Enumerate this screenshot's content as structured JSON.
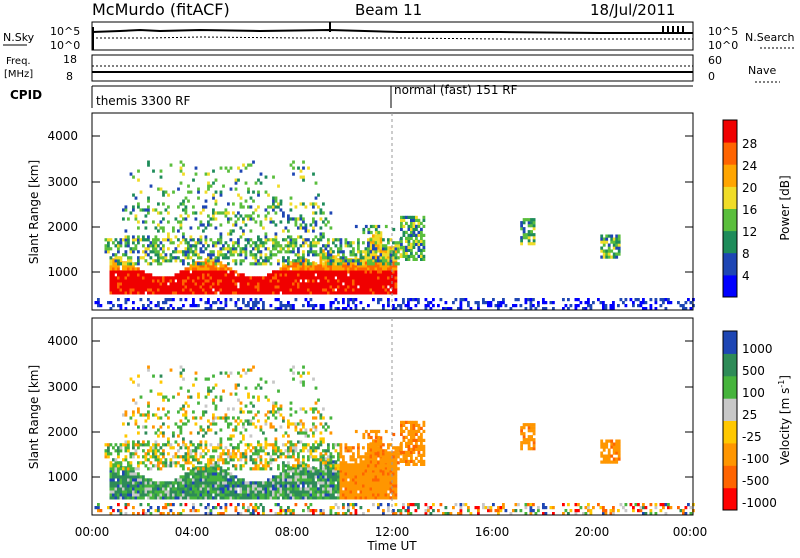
{
  "header": {
    "station": "McMurdo (fitACF)",
    "beam": "Beam 11",
    "date": "18/Jul/2011"
  },
  "noise_panel": {
    "left_label": "N.Sky",
    "left_ticks": [
      "10^5",
      "10^0"
    ],
    "right_ticks": [
      "10^5",
      "10^0"
    ],
    "right_label": "N.Search"
  },
  "freq_panel": {
    "left_label_1": "Freq.",
    "left_label_2": "[MHz]",
    "left_ticks": [
      "18",
      "8"
    ],
    "right_ticks": [
      "60",
      "0"
    ],
    "right_label": "Nave"
  },
  "cpid": {
    "label": "CPID",
    "segments": [
      {
        "start_hour": 0,
        "name": "themis 3300 RF"
      },
      {
        "start_hour": 12,
        "name": "normal (fast) 151 RF"
      }
    ]
  },
  "colors": {
    "power_scale": [
      "#0000ff",
      "#1e46b4",
      "#1e8c5a",
      "#5abe3c",
      "#f0dc28",
      "#ffa500",
      "#ff6400",
      "#f00000"
    ],
    "velocity_scale": [
      "#ff0000",
      "#ff6400",
      "#ff9600",
      "#ffc800",
      "#c8c8c8",
      "#46b43c",
      "#2e8b57",
      "#1e46b4"
    ]
  },
  "chart_data": [
    {
      "type": "heatmap",
      "name": "power",
      "ylabel": "Slant Range [km]",
      "yticks": [
        "1000",
        "2000",
        "3000",
        "4000"
      ],
      "ylim": [
        200,
        4600
      ],
      "xlim_hours": [
        0,
        24
      ],
      "colorbar_label": "Power [dB]",
      "colorbar_ticks": [
        "4",
        "8",
        "12",
        "16",
        "20",
        "24",
        "28"
      ],
      "colorbar_range": [
        0,
        32
      ]
    },
    {
      "type": "heatmap",
      "name": "velocity",
      "ylabel": "Slant Range [km]",
      "yticks": [
        "1000",
        "2000",
        "3000",
        "4000"
      ],
      "ylim": [
        200,
        4600
      ],
      "xlim_hours": [
        0,
        24
      ],
      "colorbar_label": "Velocity [m s",
      "colorbar_label_sup": "-1",
      "colorbar_label_end": "]",
      "colorbar_ticks": [
        "1000",
        "500",
        "100",
        "25",
        "-25",
        "-100",
        "-500",
        "-1000"
      ]
    }
  ],
  "xaxis": {
    "ticks": [
      "00:00",
      "04:00",
      "08:00",
      "12:00",
      "16:00",
      "20:00",
      "00:00"
    ],
    "label": "Time UT"
  }
}
